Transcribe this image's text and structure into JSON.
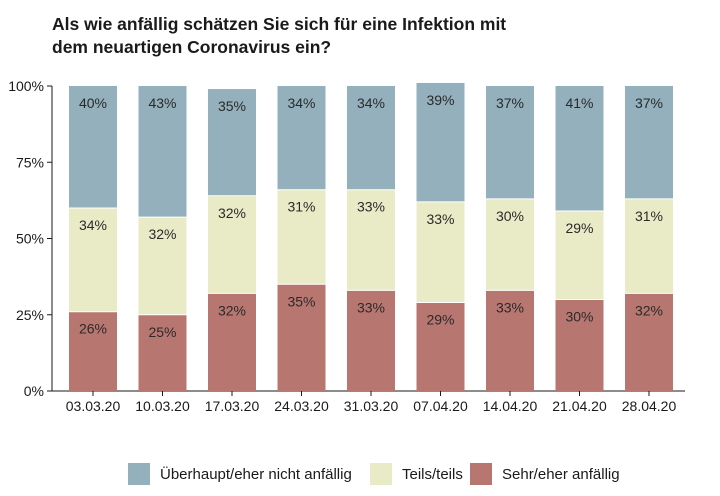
{
  "title": {
    "line1": "Als wie anfällig schätzen Sie sich für eine Infektion mit",
    "line2": "dem neuartigen Coronavirus ein?"
  },
  "colors": {
    "sehr": "#b87670",
    "teils": "#e8ebc6",
    "ueberhaupt": "#93b0bc",
    "axis": "#1a1a1a"
  },
  "chart_data": {
    "type": "bar",
    "stacked": true,
    "categories": [
      "03.03.20",
      "10.03.20",
      "17.03.20",
      "24.03.20",
      "31.03.20",
      "07.04.20",
      "14.04.20",
      "21.04.20",
      "28.04.20"
    ],
    "series": [
      {
        "name": "Sehr/eher anfällig",
        "values": [
          26,
          25,
          32,
          35,
          33,
          29,
          33,
          30,
          32
        ],
        "labels": [
          "26%",
          "25%",
          "32%",
          "35%",
          "33%",
          "29%",
          "33%",
          "30%",
          "32%"
        ]
      },
      {
        "name": "Teils/teils",
        "values": [
          34,
          32,
          32,
          31,
          33,
          33,
          30,
          29,
          31
        ],
        "labels": [
          "34%",
          "32%",
          "32%",
          "31%",
          "33%",
          "33%",
          "30%",
          "29%",
          "31%"
        ]
      },
      {
        "name": "Überhaupt/eher nicht anfällig",
        "values": [
          40,
          43,
          35,
          34,
          34,
          39,
          37,
          41,
          37
        ],
        "labels": [
          "40%",
          "43%",
          "35%",
          "34%",
          "34%",
          "39%",
          "37%",
          "41%",
          "37%"
        ]
      }
    ],
    "ylim": [
      0,
      100
    ],
    "yticks": [
      0,
      25,
      50,
      75,
      100
    ],
    "yticklabels": [
      "0%",
      "25%",
      "50%",
      "75%",
      "100%"
    ],
    "grid": false,
    "legend_position": "bottom"
  },
  "legend": {
    "items": [
      {
        "label": "Überhaupt/eher nicht anfällig",
        "color_key": "ueberhaupt"
      },
      {
        "label": "Teils/teils",
        "color_key": "teils"
      },
      {
        "label": "Sehr/eher anfällig",
        "color_key": "sehr"
      }
    ]
  }
}
